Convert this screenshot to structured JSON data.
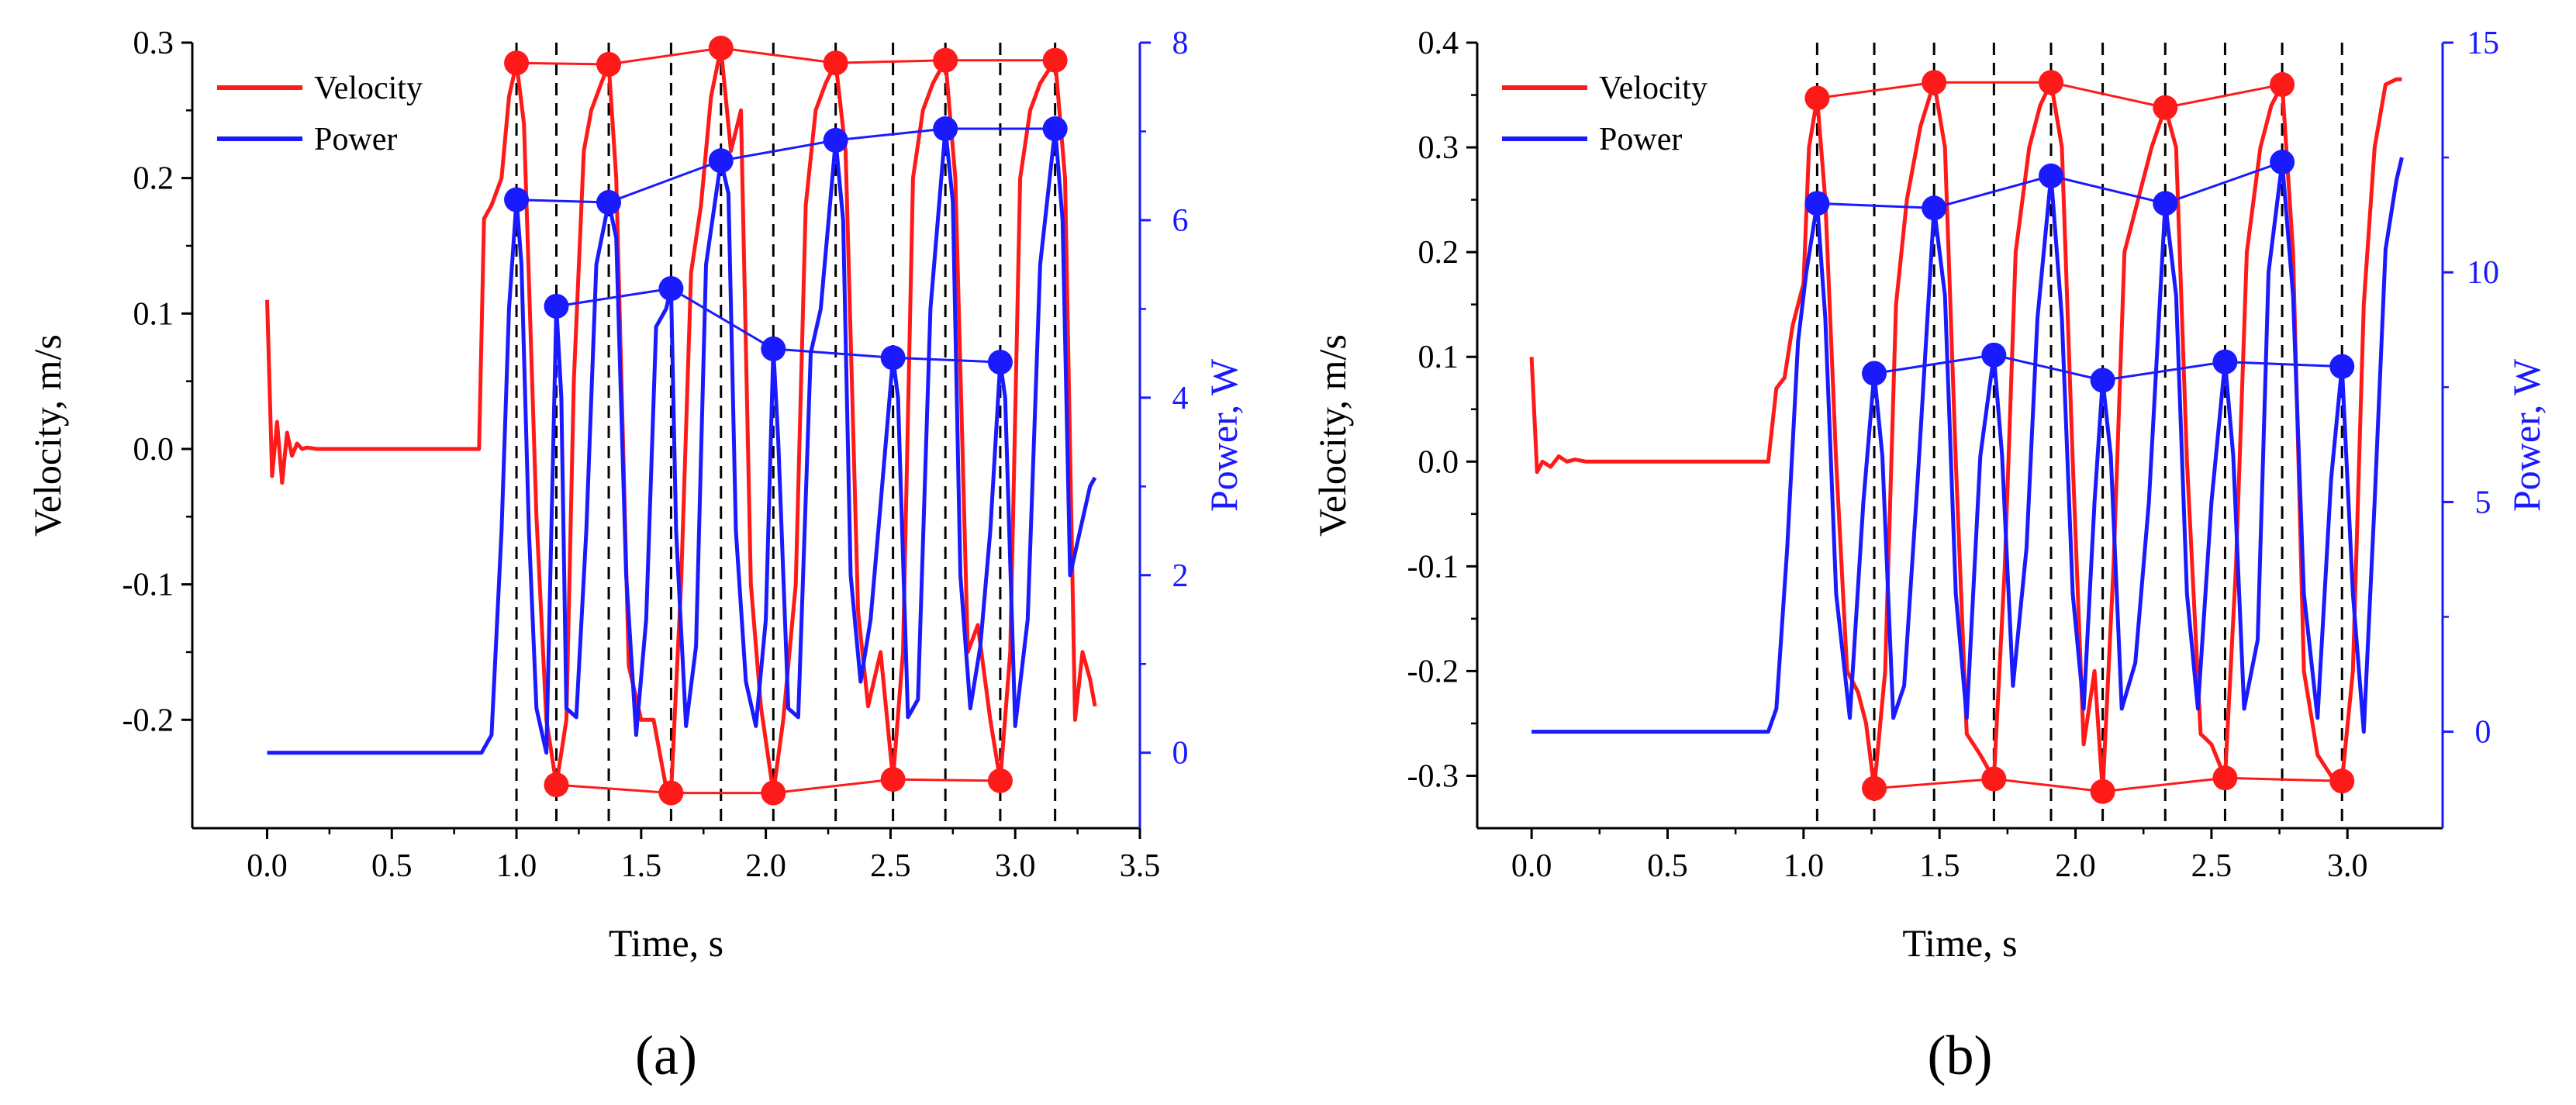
{
  "chart_data": [
    {
      "id": "a",
      "type": "line",
      "panel_label": "(a)",
      "xlabel": "Time, s",
      "ylabel_left": "Velocity, m/s",
      "ylabel_right": "Power, W",
      "xlim": [
        -0.3,
        3.5
      ],
      "ylim_left": [
        -0.28,
        0.3
      ],
      "ylim_right": [
        -0.85,
        8
      ],
      "xticks": [
        0.0,
        0.5,
        1.0,
        1.5,
        2.0,
        2.5,
        3.0,
        3.5
      ],
      "xtick_labels": [
        "0.0",
        "0.5",
        "1.0",
        "1.5",
        "2.0",
        "2.5",
        "3.0",
        "3.5"
      ],
      "yticks_left": [
        -0.2,
        -0.1,
        0.0,
        0.1,
        0.2,
        0.3
      ],
      "ytick_labels_left": [
        "-0.2",
        "-0.1",
        "0.0",
        "0.1",
        "0.2",
        "0.3"
      ],
      "yticks_right": [
        0,
        2,
        4,
        6,
        8
      ],
      "ytick_labels_right": [
        "0",
        "2",
        "4",
        "6",
        "8"
      ],
      "legend": [
        "Velocity",
        "Power"
      ],
      "vlines": [
        1.0,
        1.16,
        1.37,
        1.62,
        1.82,
        2.03,
        2.28,
        2.51,
        2.72,
        2.94,
        3.16
      ],
      "colors": {
        "velocity": "#ff1a1a",
        "power": "#1a1aff"
      },
      "velocity_max_markers": {
        "x": [
          1.0,
          1.37,
          1.82,
          2.28,
          2.72,
          3.16
        ],
        "y": [
          0.285,
          0.284,
          0.296,
          0.285,
          0.287,
          0.287
        ]
      },
      "velocity_min_markers": {
        "x": [
          1.16,
          1.62,
          2.03,
          2.51,
          2.94
        ],
        "y": [
          -0.248,
          -0.254,
          -0.254,
          -0.244,
          -0.245
        ]
      },
      "power_peak_markers": {
        "x": [
          1.0,
          1.37,
          1.82,
          2.28,
          2.72,
          3.16
        ],
        "y": [
          6.23,
          6.2,
          6.67,
          6.9,
          7.03,
          7.03
        ]
      },
      "power_sub_markers": {
        "x": [
          1.16,
          1.62,
          2.03,
          2.51,
          2.94
        ],
        "y": [
          5.03,
          5.23,
          4.55,
          4.45,
          4.4
        ]
      },
      "velocity_curve": {
        "x": [
          0.0,
          0.02,
          0.04,
          0.06,
          0.08,
          0.1,
          0.12,
          0.14,
          0.16,
          0.2,
          0.3,
          0.5,
          0.7,
          0.85,
          0.87,
          0.9,
          0.94,
          0.97,
          1.0,
          1.03,
          1.08,
          1.12,
          1.16,
          1.2,
          1.23,
          1.27,
          1.3,
          1.34,
          1.37,
          1.4,
          1.45,
          1.5,
          1.55,
          1.6,
          1.62,
          1.66,
          1.7,
          1.74,
          1.78,
          1.82,
          1.86,
          1.9,
          1.94,
          1.98,
          2.03,
          2.07,
          2.12,
          2.16,
          2.2,
          2.24,
          2.28,
          2.32,
          2.37,
          2.41,
          2.46,
          2.51,
          2.55,
          2.59,
          2.63,
          2.67,
          2.72,
          2.76,
          2.81,
          2.85,
          2.9,
          2.94,
          2.98,
          3.02,
          3.06,
          3.1,
          3.16,
          3.2,
          3.24,
          3.27,
          3.3,
          3.32
        ],
        "y": [
          0.11,
          -0.02,
          0.02,
          -0.025,
          0.012,
          -0.005,
          0.004,
          0.0,
          0.001,
          0.0,
          0.0,
          0.0,
          0.0,
          0.0,
          0.17,
          0.18,
          0.2,
          0.26,
          0.285,
          0.24,
          -0.05,
          -0.2,
          -0.248,
          -0.2,
          0.05,
          0.22,
          0.25,
          0.27,
          0.284,
          0.2,
          -0.16,
          -0.2,
          -0.2,
          -0.25,
          -0.254,
          -0.1,
          0.13,
          0.18,
          0.26,
          0.296,
          0.22,
          0.25,
          -0.1,
          -0.19,
          -0.254,
          -0.2,
          -0.1,
          0.18,
          0.25,
          0.27,
          0.285,
          0.22,
          -0.12,
          -0.19,
          -0.15,
          -0.244,
          -0.15,
          0.2,
          0.25,
          0.27,
          0.287,
          0.2,
          -0.15,
          -0.13,
          -0.2,
          -0.245,
          -0.15,
          0.2,
          0.25,
          0.27,
          0.287,
          0.2,
          -0.2,
          -0.15,
          -0.17,
          -0.19
        ]
      },
      "power_curve": {
        "x": [
          0.0,
          0.3,
          0.6,
          0.86,
          0.9,
          0.94,
          0.97,
          1.0,
          1.02,
          1.05,
          1.08,
          1.12,
          1.16,
          1.18,
          1.2,
          1.24,
          1.28,
          1.32,
          1.37,
          1.4,
          1.44,
          1.48,
          1.52,
          1.56,
          1.6,
          1.62,
          1.64,
          1.68,
          1.72,
          1.76,
          1.82,
          1.85,
          1.88,
          1.92,
          1.96,
          2.0,
          2.03,
          2.05,
          2.09,
          2.13,
          2.18,
          2.22,
          2.28,
          2.31,
          2.34,
          2.38,
          2.42,
          2.46,
          2.51,
          2.53,
          2.57,
          2.61,
          2.66,
          2.72,
          2.75,
          2.78,
          2.82,
          2.86,
          2.9,
          2.94,
          2.96,
          3.0,
          3.05,
          3.1,
          3.16,
          3.19,
          3.22,
          3.26,
          3.3,
          3.32
        ],
        "y": [
          0.0,
          0.0,
          0.0,
          0.0,
          0.2,
          2.5,
          5.0,
          6.23,
          5.5,
          2.5,
          0.5,
          0.0,
          5.03,
          4.0,
          0.5,
          0.4,
          2.5,
          5.5,
          6.2,
          5.8,
          2.0,
          0.2,
          1.5,
          4.8,
          5.0,
          5.23,
          2.5,
          0.3,
          1.2,
          5.5,
          6.67,
          6.3,
          2.5,
          0.8,
          0.3,
          1.5,
          4.55,
          3.5,
          0.5,
          0.4,
          4.5,
          5.0,
          6.9,
          6.0,
          2.0,
          0.8,
          1.5,
          2.8,
          4.45,
          4.0,
          0.4,
          0.6,
          5.0,
          7.03,
          6.2,
          2.0,
          0.5,
          1.2,
          2.5,
          4.4,
          4.0,
          0.3,
          1.5,
          5.5,
          7.03,
          6.0,
          2.0,
          2.5,
          3.0,
          3.1
        ]
      }
    },
    {
      "id": "b",
      "type": "line",
      "panel_label": "(b)",
      "xlabel": "Time, s",
      "ylabel_left": "Velocity, m/s",
      "ylabel_right": "Power, W",
      "xlim": [
        -0.2,
        3.35
      ],
      "ylim_left": [
        -0.35,
        0.4
      ],
      "ylim_right": [
        -2.1,
        15
      ],
      "xticks": [
        0.0,
        0.5,
        1.0,
        1.5,
        2.0,
        2.5,
        3.0
      ],
      "xtick_labels": [
        "0.0",
        "0.5",
        "1.0",
        "1.5",
        "2.0",
        "2.5",
        "3.0"
      ],
      "yticks_left": [
        -0.3,
        -0.2,
        -0.1,
        0.0,
        0.1,
        0.2,
        0.3,
        0.4
      ],
      "ytick_labels_left": [
        "-0.3",
        "-0.2",
        "-0.1",
        "0.0",
        "0.1",
        "0.2",
        "0.3",
        "0.4"
      ],
      "yticks_right": [
        0,
        5,
        10,
        15
      ],
      "ytick_labels_right": [
        "0",
        "5",
        "10",
        "15"
      ],
      "legend": [
        "Velocity",
        "Power"
      ],
      "vlines": [
        1.05,
        1.26,
        1.48,
        1.7,
        1.91,
        2.1,
        2.33,
        2.55,
        2.76,
        2.98
      ],
      "colors": {
        "velocity": "#ff1a1a",
        "power": "#1a1aff"
      },
      "velocity_max_markers": {
        "x": [
          1.05,
          1.48,
          1.91,
          2.33,
          2.76
        ],
        "y": [
          0.347,
          0.362,
          0.362,
          0.338,
          0.36
        ]
      },
      "velocity_min_markers": {
        "x": [
          1.26,
          1.7,
          2.1,
          2.55,
          2.98
        ],
        "y": [
          -0.312,
          -0.303,
          -0.315,
          -0.302,
          -0.305
        ]
      },
      "power_peak_markers": {
        "x": [
          1.05,
          1.48,
          1.91,
          2.33,
          2.76
        ],
        "y": [
          11.5,
          11.4,
          12.1,
          11.5,
          12.4
        ]
      },
      "power_sub_markers": {
        "x": [
          1.26,
          1.7,
          2.1,
          2.55,
          2.98
        ],
        "y": [
          7.8,
          8.2,
          7.65,
          8.05,
          7.95
        ]
      },
      "velocity_curve": {
        "x": [
          0.0,
          0.02,
          0.04,
          0.07,
          0.1,
          0.13,
          0.16,
          0.2,
          0.4,
          0.7,
          0.87,
          0.9,
          0.93,
          0.96,
          1.0,
          1.02,
          1.05,
          1.08,
          1.12,
          1.16,
          1.2,
          1.23,
          1.26,
          1.3,
          1.34,
          1.38,
          1.43,
          1.48,
          1.52,
          1.56,
          1.6,
          1.65,
          1.7,
          1.74,
          1.78,
          1.83,
          1.87,
          1.91,
          1.95,
          1.99,
          2.03,
          2.07,
          2.1,
          2.14,
          2.18,
          2.23,
          2.28,
          2.33,
          2.37,
          2.41,
          2.46,
          2.5,
          2.55,
          2.59,
          2.63,
          2.68,
          2.72,
          2.76,
          2.8,
          2.84,
          2.89,
          2.94,
          2.98,
          3.02,
          3.06,
          3.1,
          3.14,
          3.18,
          3.2
        ],
        "y": [
          0.1,
          -0.01,
          0.0,
          -0.005,
          0.005,
          0.0,
          0.002,
          0.0,
          0.0,
          0.0,
          0.0,
          0.07,
          0.08,
          0.13,
          0.17,
          0.3,
          0.347,
          0.25,
          0.0,
          -0.2,
          -0.22,
          -0.25,
          -0.312,
          -0.2,
          0.15,
          0.25,
          0.32,
          0.362,
          0.3,
          0.0,
          -0.26,
          -0.28,
          -0.303,
          -0.1,
          0.2,
          0.3,
          0.34,
          0.362,
          0.3,
          0.0,
          -0.27,
          -0.2,
          -0.315,
          -0.1,
          0.2,
          0.25,
          0.3,
          0.338,
          0.3,
          0.0,
          -0.26,
          -0.27,
          -0.302,
          -0.1,
          0.2,
          0.3,
          0.34,
          0.36,
          0.2,
          -0.2,
          -0.28,
          -0.3,
          -0.305,
          -0.2,
          0.15,
          0.3,
          0.36,
          0.365,
          0.365
        ]
      },
      "power_curve": {
        "x": [
          0.0,
          0.4,
          0.87,
          0.9,
          0.94,
          0.98,
          1.01,
          1.05,
          1.08,
          1.12,
          1.17,
          1.22,
          1.26,
          1.29,
          1.33,
          1.37,
          1.42,
          1.48,
          1.52,
          1.56,
          1.6,
          1.65,
          1.7,
          1.73,
          1.77,
          1.82,
          1.86,
          1.91,
          1.95,
          1.99,
          2.03,
          2.07,
          2.1,
          2.13,
          2.17,
          2.22,
          2.27,
          2.33,
          2.37,
          2.41,
          2.45,
          2.5,
          2.55,
          2.58,
          2.62,
          2.67,
          2.71,
          2.76,
          2.8,
          2.84,
          2.89,
          2.94,
          2.98,
          3.02,
          3.06,
          3.1,
          3.14,
          3.18,
          3.2
        ],
        "y": [
          0.0,
          0.0,
          0.0,
          0.5,
          4.0,
          8.5,
          10.0,
          11.5,
          9.0,
          3.0,
          0.3,
          5.0,
          7.8,
          6.0,
          0.3,
          1.0,
          5.5,
          11.4,
          9.5,
          3.0,
          0.3,
          6.0,
          8.2,
          6.0,
          1.0,
          4.0,
          9.0,
          12.1,
          9.0,
          3.0,
          0.5,
          5.0,
          7.65,
          6.0,
          0.5,
          1.5,
          5.0,
          11.5,
          9.5,
          3.0,
          0.5,
          5.0,
          8.05,
          6.0,
          0.5,
          2.0,
          10.0,
          12.4,
          9.5,
          3.0,
          0.3,
          5.5,
          7.95,
          3.0,
          0.0,
          5.0,
          10.5,
          12.0,
          12.5
        ]
      }
    }
  ]
}
